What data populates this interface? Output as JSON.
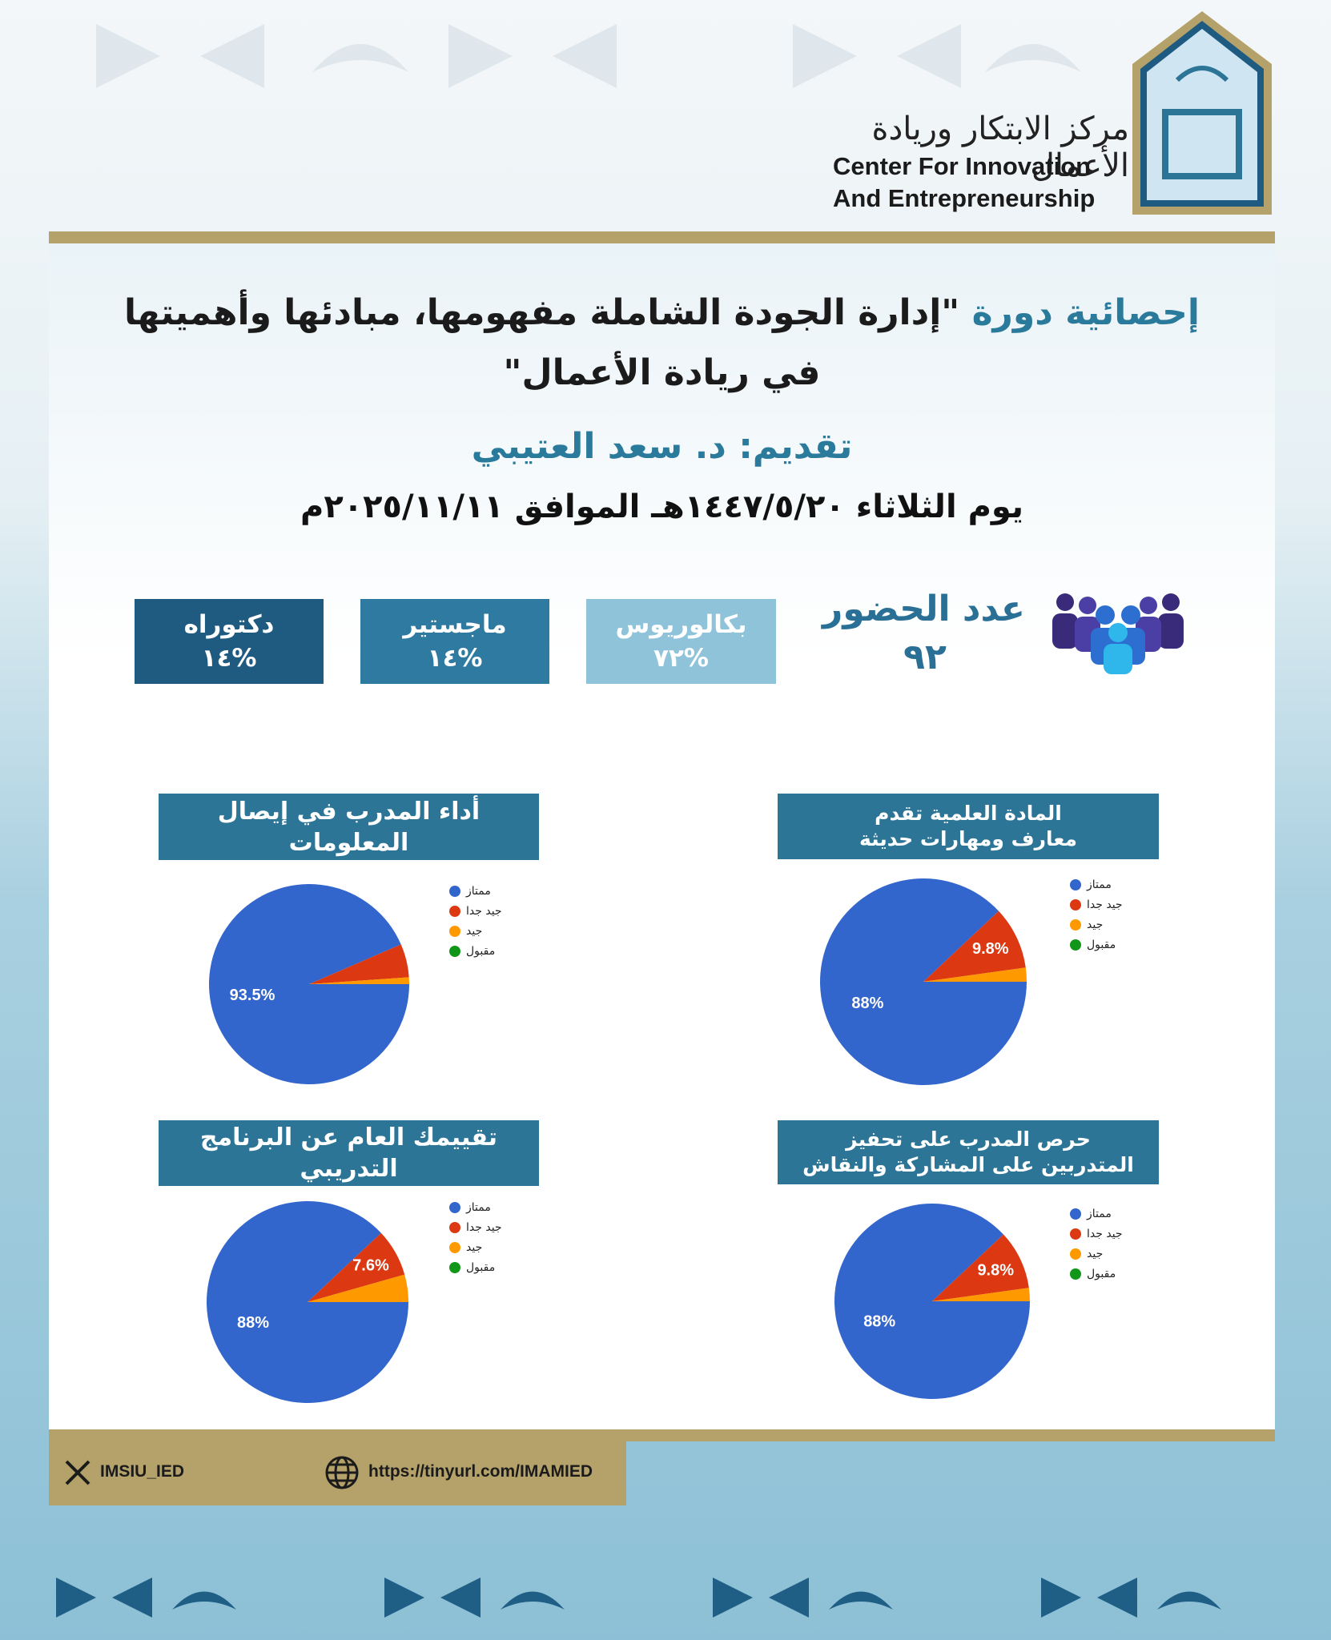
{
  "header": {
    "org_arabic": "مركز الابتكار وريادة الأعمال",
    "org_line1": "Center For Innovation",
    "org_line2": "And Entrepreneurship"
  },
  "title": {
    "prefix": "إحصائية دورة",
    "line1_rest": "\"إدارة الجودة الشاملة مفهومها، مبادئها وأهميتها",
    "line2": "في ريادة الأعمال\""
  },
  "presenter": "تقديم: د. سعد العتيبي",
  "date": "يوم الثلاثاء ١٤٤٧/٥/٢٠هـ الموافق ٢٠٢٥/١١/١١م",
  "attendance": {
    "label": "عدد الحضور",
    "value": "٩٢"
  },
  "degrees": [
    {
      "name": "بكالوريوس",
      "share": "%٧٢"
    },
    {
      "name": "ماجستير",
      "share": "%١٤"
    },
    {
      "name": "دكتوراه",
      "share": "%١٤"
    }
  ],
  "chart_data": [
    {
      "type": "pie",
      "title": "المادة العلمية تقدم معارف ومهارات حديثة",
      "categories": [
        "ممتاز",
        "جيد جدا",
        "جيد",
        "مقبول"
      ],
      "values": [
        88,
        9.8,
        2.2,
        0
      ],
      "value_labels": [
        "88%",
        "9.8%",
        null,
        null
      ],
      "colors": [
        "#3366cc",
        "#dc3912",
        "#ff9900",
        "#109618"
      ]
    },
    {
      "type": "pie",
      "title": "أداء المدرب في إيصال المعلومات",
      "categories": [
        "ممتاز",
        "جيد جدا",
        "جيد",
        "مقبول"
      ],
      "values": [
        93.5,
        5.4,
        1.1,
        0
      ],
      "value_labels": [
        "93.5%",
        null,
        null,
        null
      ],
      "colors": [
        "#3366cc",
        "#dc3912",
        "#ff9900",
        "#109618"
      ]
    },
    {
      "type": "pie",
      "title": "حرص المدرب على تحفيز المتدربين على المشاركة والنقاش",
      "categories": [
        "ممتاز",
        "جيد جدا",
        "جيد",
        "مقبول"
      ],
      "values": [
        88,
        9.8,
        2.2,
        0
      ],
      "value_labels": [
        "88%",
        "9.8%",
        null,
        null
      ],
      "colors": [
        "#3366cc",
        "#dc3912",
        "#ff9900",
        "#109618"
      ]
    },
    {
      "type": "pie",
      "title": "تقييمك العام عن البرنامج التدريبي",
      "categories": [
        "ممتاز",
        "جيد جدا",
        "جيد",
        "مقبول"
      ],
      "values": [
        88,
        7.6,
        4.4,
        0
      ],
      "value_labels": [
        "88%",
        "7.6%",
        null,
        null
      ],
      "colors": [
        "#3366cc",
        "#dc3912",
        "#ff9900",
        "#109618"
      ]
    }
  ],
  "footer": {
    "x_handle": "IMSIU_IED",
    "url": "https://tinyurl.com/IMAMIED"
  }
}
